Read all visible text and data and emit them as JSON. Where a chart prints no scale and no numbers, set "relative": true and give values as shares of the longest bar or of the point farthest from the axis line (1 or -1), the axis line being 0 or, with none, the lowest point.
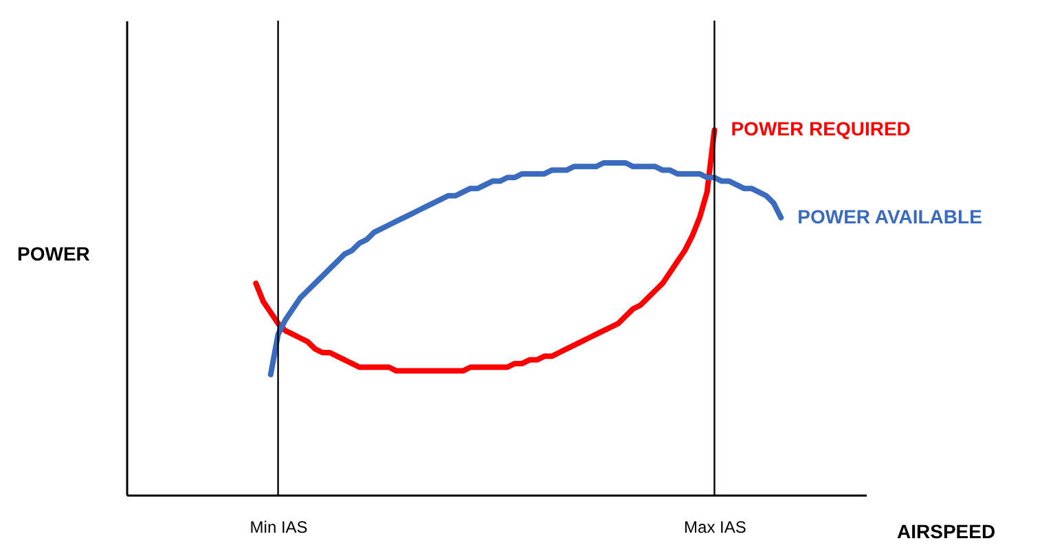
{
  "chart_data": {
    "type": "line",
    "relative": true,
    "xlabel": "AIRSPEED",
    "ylabel": "POWER",
    "categories": [
      null,
      null,
      null,
      null,
      null,
      null,
      null,
      null,
      null,
      null,
      null,
      null,
      null,
      null,
      null,
      null,
      null,
      null,
      null,
      null,
      "Min IAS",
      null,
      null,
      null,
      null,
      null,
      null,
      null,
      null,
      null,
      null,
      null,
      null,
      null,
      null,
      null,
      null,
      null,
      null,
      null,
      null,
      null,
      null,
      null,
      null,
      null,
      null,
      null,
      null,
      null,
      null,
      null,
      null,
      null,
      null,
      null,
      null,
      null,
      null,
      null,
      null,
      null,
      null,
      null,
      null,
      null,
      null,
      null,
      null,
      null,
      null,
      null,
      null,
      null,
      null,
      null,
      null,
      null,
      null,
      "Max IAS",
      null,
      null,
      null,
      null,
      null,
      null,
      null,
      null,
      null,
      null,
      null,
      null,
      null,
      null,
      null,
      null,
      null,
      null,
      null,
      null
    ],
    "series": [
      {
        "name": "POWER REQUIRED",
        "color": "#ff0000",
        "values": [
          null,
          null,
          null,
          null,
          null,
          null,
          null,
          null,
          null,
          null,
          null,
          null,
          null,
          null,
          null,
          null,
          null,
          0.58,
          0.53,
          0.5,
          0.47,
          0.45,
          0.44,
          0.43,
          0.42,
          0.4,
          0.39,
          0.39,
          0.38,
          0.37,
          0.36,
          0.35,
          0.35,
          0.35,
          0.35,
          0.35,
          0.34,
          0.34,
          0.34,
          0.34,
          0.34,
          0.34,
          0.34,
          0.34,
          0.34,
          0.34,
          0.35,
          0.35,
          0.35,
          0.35,
          0.35,
          0.35,
          0.36,
          0.36,
          0.37,
          0.37,
          0.38,
          0.38,
          0.39,
          0.4,
          0.41,
          0.42,
          0.43,
          0.44,
          0.45,
          0.46,
          0.47,
          0.49,
          0.51,
          0.52,
          0.54,
          0.56,
          0.58,
          0.61,
          0.64,
          0.67,
          0.71,
          0.76,
          0.83,
          1.0,
          null,
          null,
          null,
          null,
          null,
          null,
          null,
          null,
          null,
          null,
          null,
          null,
          null,
          null,
          null,
          null,
          null,
          null,
          null,
          null
        ]
      },
      {
        "name": "POWER AVAILABLE",
        "color": "#3a6bbf",
        "values": [
          null,
          null,
          null,
          null,
          null,
          null,
          null,
          null,
          null,
          null,
          null,
          null,
          null,
          null,
          null,
          null,
          null,
          null,
          null,
          0.33,
          0.44,
          0.48,
          0.51,
          0.54,
          0.56,
          0.58,
          0.6,
          0.62,
          0.64,
          0.66,
          0.67,
          0.69,
          0.7,
          0.72,
          0.73,
          0.74,
          0.75,
          0.76,
          0.77,
          0.78,
          0.79,
          0.8,
          0.81,
          0.82,
          0.82,
          0.83,
          0.84,
          0.84,
          0.85,
          0.86,
          0.86,
          0.87,
          0.87,
          0.88,
          0.88,
          0.88,
          0.88,
          0.89,
          0.89,
          0.89,
          0.9,
          0.9,
          0.9,
          0.9,
          0.91,
          0.91,
          0.91,
          0.91,
          0.9,
          0.9,
          0.9,
          0.9,
          0.89,
          0.89,
          0.88,
          0.88,
          0.88,
          0.88,
          0.87,
          0.87,
          0.86,
          0.86,
          0.85,
          0.84,
          0.84,
          0.83,
          0.82,
          0.8,
          0.76,
          null,
          null,
          null,
          null,
          null,
          null,
          null,
          null,
          null,
          null,
          null
        ]
      }
    ],
    "ref_lines": [
      {
        "axis": "x",
        "value": "Min IAS"
      },
      {
        "axis": "x",
        "value": "Max IAS"
      }
    ],
    "grid": false,
    "marker": "none",
    "line_style": "solid"
  }
}
